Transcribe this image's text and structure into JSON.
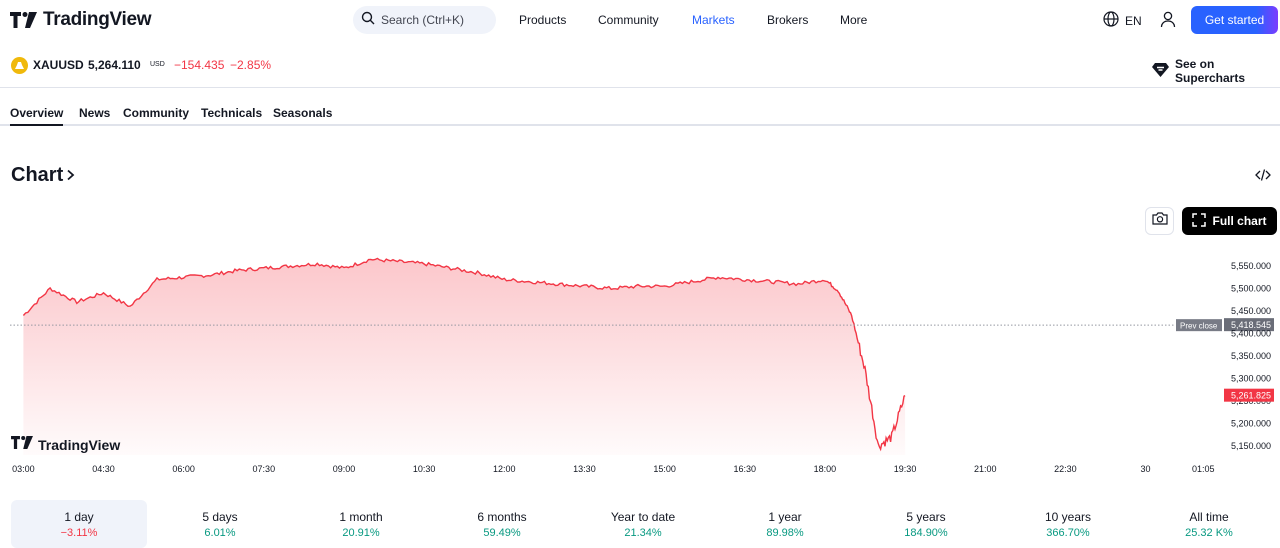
{
  "brand": {
    "name": "TradingView"
  },
  "search": {
    "placeholder": "Search (Ctrl+K)"
  },
  "nav": {
    "products": "Products",
    "community": "Community",
    "markets": "Markets",
    "brokers": "Brokers",
    "more": "More"
  },
  "lang": "EN",
  "get_started": "Get started",
  "symbol": {
    "name": "XAUUSD",
    "price": "5,264.110",
    "currency": "USD",
    "change": "−154.435",
    "change_percent": "−2.85%"
  },
  "supercharts": "See on Supercharts",
  "tabs": [
    "Overview",
    "News",
    "Community",
    "Technicals",
    "Seasonals"
  ],
  "chart_heading": "Chart",
  "full_chart": "Full chart",
  "chart_data": {
    "type": "area",
    "series": [
      {
        "name": "XAUUSD",
        "color": "#f23645",
        "x": [
          "03:00",
          "03:30",
          "04:00",
          "04:30",
          "05:00",
          "05:30",
          "06:00",
          "06:30",
          "07:00",
          "07:30",
          "08:00",
          "08:30",
          "09:00",
          "09:30",
          "10:00",
          "10:30",
          "11:00",
          "11:30",
          "12:00",
          "12:30",
          "13:00",
          "13:30",
          "14:00",
          "14:30",
          "15:00",
          "15:30",
          "16:00",
          "16:30",
          "17:00",
          "17:30",
          "18:00",
          "18:15",
          "18:30",
          "18:45",
          "19:00",
          "19:15",
          "19:30"
        ],
        "values": [
          5440,
          5500,
          5470,
          5490,
          5460,
          5520,
          5525,
          5530,
          5540,
          5545,
          5550,
          5555,
          5545,
          5565,
          5560,
          5555,
          5545,
          5535,
          5520,
          5515,
          5510,
          5505,
          5500,
          5505,
          5505,
          5515,
          5525,
          5520,
          5515,
          5510,
          5520,
          5495,
          5440,
          5320,
          5150,
          5170,
          5262
        ]
      }
    ],
    "y_ticks": [
      "5,550.000",
      "5,500.000",
      "5,450.000",
      "5,400.000",
      "5,350.000",
      "5,300.000",
      "5,250.000",
      "5,200.000",
      "5,150.000"
    ],
    "ylim": [
      5130,
      5590
    ],
    "x_ticks": [
      "03:00",
      "04:30",
      "06:00",
      "07:30",
      "09:00",
      "10:30",
      "12:00",
      "13:30",
      "15:00",
      "16:30",
      "18:00",
      "19:30",
      "21:00",
      "22:30",
      "30",
      "01:05"
    ],
    "prev_close": {
      "label": "Prev close",
      "value": 5418.545,
      "text": "5,418.545"
    },
    "last_price": {
      "value": 5261.825,
      "text": "5,261.825"
    },
    "grid": false
  },
  "periods": [
    {
      "label": "1 day",
      "value": "−3.11%",
      "color": "#f23645"
    },
    {
      "label": "5 days",
      "value": "6.01%",
      "color": "#089981"
    },
    {
      "label": "1 month",
      "value": "20.91%",
      "color": "#089981"
    },
    {
      "label": "6 months",
      "value": "59.49%",
      "color": "#089981"
    },
    {
      "label": "Year to date",
      "value": "21.34%",
      "color": "#089981"
    },
    {
      "label": "1 year",
      "value": "89.98%",
      "color": "#089981"
    },
    {
      "label": "5 years",
      "value": "184.90%",
      "color": "#089981"
    },
    {
      "label": "10 years",
      "value": "366.70%",
      "color": "#089981"
    },
    {
      "label": "All time",
      "value": "25.32 K%",
      "color": "#089981"
    }
  ]
}
